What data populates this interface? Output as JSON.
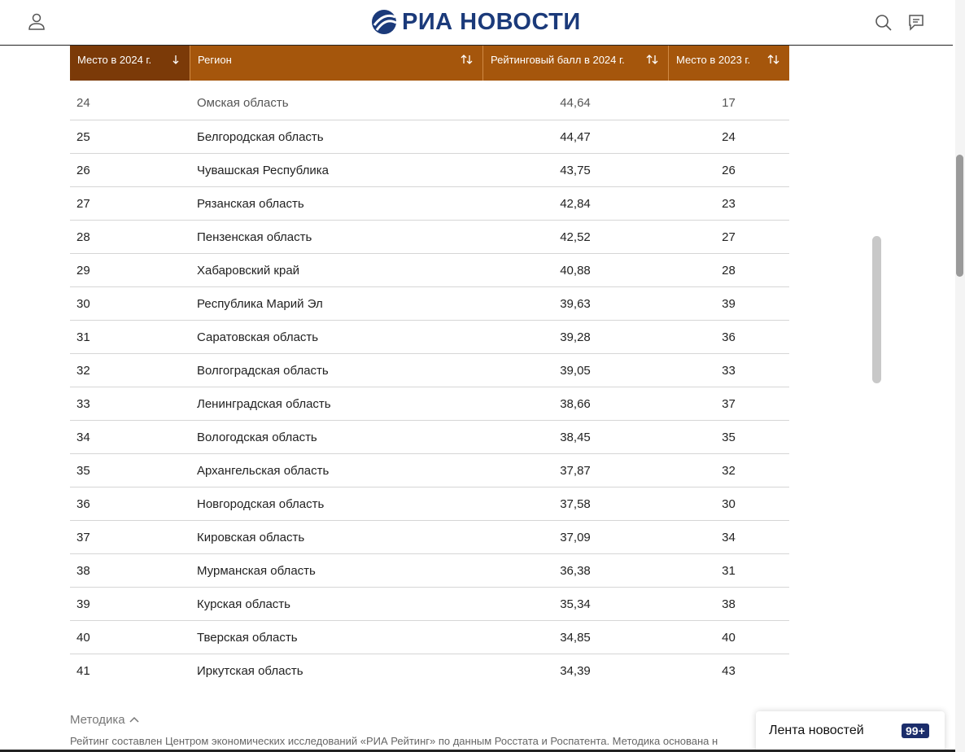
{
  "header": {
    "logo": "РИА НОВОСТИ"
  },
  "table": {
    "columns": [
      "Место в 2024 г.",
      "Регион",
      "Рейтинговый балл в 2024 г.",
      "Место в 2023 г."
    ],
    "rows": [
      [
        24,
        "Омская область",
        "44,64",
        17
      ],
      [
        25,
        "Белгородская область",
        "44,47",
        24
      ],
      [
        26,
        "Чувашская Республика",
        "43,75",
        26
      ],
      [
        27,
        "Рязанская область",
        "42,84",
        23
      ],
      [
        28,
        "Пензенская область",
        "42,52",
        27
      ],
      [
        29,
        "Хабаровский край",
        "40,88",
        28
      ],
      [
        30,
        "Республика Марий Эл",
        "39,63",
        39
      ],
      [
        31,
        "Саратовская область",
        "39,28",
        36
      ],
      [
        32,
        "Волгоградская область",
        "39,05",
        33
      ],
      [
        33,
        "Ленинградская область",
        "38,66",
        37
      ],
      [
        34,
        "Вологодская область",
        "38,45",
        35
      ],
      [
        35,
        "Архангельская область",
        "37,87",
        32
      ],
      [
        36,
        "Новгородская область",
        "37,58",
        30
      ],
      [
        37,
        "Кировская область",
        "37,09",
        34
      ],
      [
        38,
        "Мурманская область",
        "36,38",
        31
      ],
      [
        39,
        "Курская область",
        "35,34",
        38
      ],
      [
        40,
        "Тверская область",
        "34,85",
        40
      ],
      [
        41,
        "Иркутская область",
        "34,39",
        43
      ]
    ]
  },
  "methodology": {
    "title": "Методика",
    "text": "Рейтинг составлен Центром экономических исследований «РИА Рейтинг» по данным Росстата и Роспатента. Методика основана н"
  },
  "news_widget": {
    "label": "Лента новостей",
    "badge": "99+"
  }
}
